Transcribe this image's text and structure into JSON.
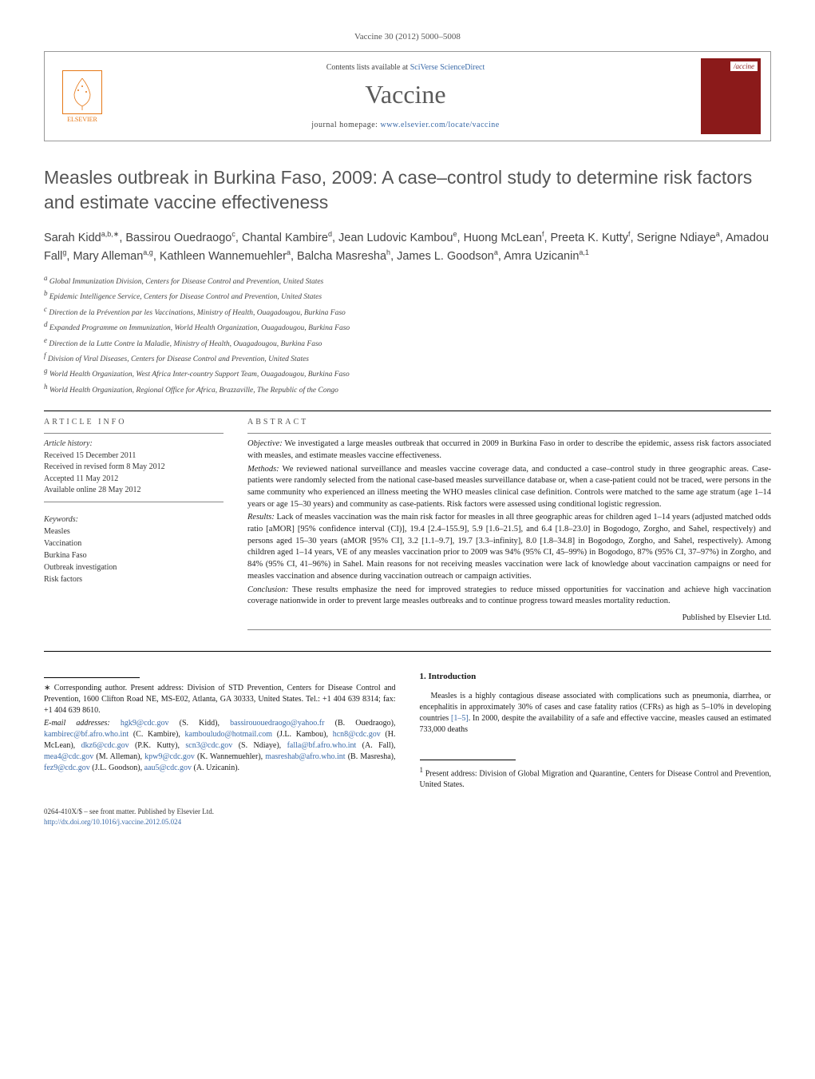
{
  "journal_ref": "Vaccine 30 (2012) 5000–5008",
  "header": {
    "contents_prefix": "Contents lists available at ",
    "sd_text": "SciVerse ScienceDirect",
    "journal_name": "Vaccine",
    "homepage_prefix": "journal homepage: ",
    "homepage_url": "www.elsevier.com/locate/vaccine",
    "elsevier_label": "ELSEVIER",
    "cover_label": "/accine"
  },
  "title": "Measles outbreak in Burkina Faso, 2009: A case–control study to determine risk factors and estimate vaccine effectiveness",
  "authors_html_parts": [
    {
      "name": "Sarah Kidd",
      "sup": "a,b,∗"
    },
    {
      "name": "Bassirou Ouedraogo",
      "sup": "c"
    },
    {
      "name": "Chantal Kambire",
      "sup": "d"
    },
    {
      "name": "Jean Ludovic Kambou",
      "sup": "e"
    },
    {
      "name": "Huong McLean",
      "sup": "f"
    },
    {
      "name": "Preeta K. Kutty",
      "sup": "f"
    },
    {
      "name": "Serigne Ndiaye",
      "sup": "a"
    },
    {
      "name": "Amadou Fall",
      "sup": "g"
    },
    {
      "name": "Mary Alleman",
      "sup": "a,g"
    },
    {
      "name": "Kathleen Wannemuehler",
      "sup": "a"
    },
    {
      "name": "Balcha Masresha",
      "sup": "h"
    },
    {
      "name": "James L. Goodson",
      "sup": "a"
    },
    {
      "name": "Amra Uzicanin",
      "sup": "a,1"
    }
  ],
  "affiliations": [
    {
      "sup": "a",
      "text": "Global Immunization Division, Centers for Disease Control and Prevention, United States"
    },
    {
      "sup": "b",
      "text": "Epidemic Intelligence Service, Centers for Disease Control and Prevention, United States"
    },
    {
      "sup": "c",
      "text": "Direction de la Prévention par les Vaccinations, Ministry of Health, Ouagadougou, Burkina Faso"
    },
    {
      "sup": "d",
      "text": "Expanded Programme on Immunization, World Health Organization, Ouagadougou, Burkina Faso"
    },
    {
      "sup": "e",
      "text": "Direction de la Lutte Contre la Maladie, Ministry of Health, Ouagadougou, Burkina Faso"
    },
    {
      "sup": "f",
      "text": "Division of Viral Diseases, Centers for Disease Control and Prevention, United States"
    },
    {
      "sup": "g",
      "text": "World Health Organization, West Africa Inter-country Support Team, Ouagadougou, Burkina Faso"
    },
    {
      "sup": "h",
      "text": "World Health Organization, Regional Office for Africa, Brazzaville, The Republic of the Congo"
    }
  ],
  "article_info": {
    "head": "ARTICLE INFO",
    "history_label": "Article history:",
    "received": "Received 15 December 2011",
    "revised": "Received in revised form 8 May 2012",
    "accepted": "Accepted 11 May 2012",
    "online": "Available online 28 May 2012",
    "keywords_label": "Keywords:",
    "keywords": [
      "Measles",
      "Vaccination",
      "Burkina Faso",
      "Outbreak investigation",
      "Risk factors"
    ]
  },
  "abstract": {
    "head": "ABSTRACT",
    "objective_label": "Objective:",
    "objective": "We investigated a large measles outbreak that occurred in 2009 in Burkina Faso in order to describe the epidemic, assess risk factors associated with measles, and estimate measles vaccine effectiveness.",
    "methods_label": "Methods:",
    "methods": "We reviewed national surveillance and measles vaccine coverage data, and conducted a case–control study in three geographic areas. Case-patients were randomly selected from the national case-based measles surveillance database or, when a case-patient could not be traced, were persons in the same community who experienced an illness meeting the WHO measles clinical case definition. Controls were matched to the same age stratum (age 1–14 years or age 15–30 years) and community as case-patients. Risk factors were assessed using conditional logistic regression.",
    "results_label": "Results:",
    "results": "Lack of measles vaccination was the main risk factor for measles in all three geographic areas for children aged 1–14 years (adjusted matched odds ratio [aMOR] [95% confidence interval (CI)], 19.4 [2.4–155.9], 5.9 [1.6–21.5], and 6.4 [1.8–23.0] in Bogodogo, Zorgho, and Sahel, respectively) and persons aged 15–30 years (aMOR [95% CI], 3.2 [1.1–9.7], 19.7 [3.3–infinity], 8.0 [1.8–34.8] in Bogodogo, Zorgho, and Sahel, respectively). Among children aged 1–14 years, VE of any measles vaccination prior to 2009 was 94% (95% CI, 45–99%) in Bogodogo, 87% (95% CI, 37–97%) in Zorgho, and 84% (95% CI, 41–96%) in Sahel. Main reasons for not receiving measles vaccination were lack of knowledge about vaccination campaigns or need for measles vaccination and absence during vaccination outreach or campaign activities.",
    "conclusion_label": "Conclusion:",
    "conclusion": "These results emphasize the need for improved strategies to reduce missed opportunities for vaccination and achieve high vaccination coverage nationwide in order to prevent large measles outbreaks and to continue progress toward measles mortality reduction.",
    "publisher": "Published by Elsevier Ltd."
  },
  "intro": {
    "head": "1. Introduction",
    "para1_pre": "Measles is a highly contagious disease associated with complications such as pneumonia, diarrhea, or encephalitis in approximately 30% of cases and case fatality ratios (CFRs) as high as 5–10% in developing countries ",
    "para1_ref": "[1–5]",
    "para1_post": ". In 2000, despite the availability of a safe and effective vaccine, measles caused an estimated 733,000 deaths"
  },
  "correspondence": {
    "star": "∗",
    "text": "Corresponding author. Present address: Division of STD Prevention, Centers for Disease Control and Prevention, 1600 Clifton Road NE, MS-E02, Atlanta, GA 30333, United States. Tel.: +1 404 639 8314; fax: +1 404 639 8610.",
    "email_label": "E-mail addresses:",
    "emails": [
      {
        "addr": "hgk9@cdc.gov",
        "who": "(S. Kidd)"
      },
      {
        "addr": "bassirououedraogo@yahoo.fr",
        "who": "(B. Ouedraogo)"
      },
      {
        "addr": "kambirec@bf.afro.who.int",
        "who": "(C. Kambire)"
      },
      {
        "addr": "kambouludo@hotmail.com",
        "who": "(J.L. Kambou)"
      },
      {
        "addr": "hcn8@cdc.gov",
        "who": "(H. McLean)"
      },
      {
        "addr": "dkz6@cdc.gov",
        "who": "(P.K. Kutty)"
      },
      {
        "addr": "scn3@cdc.gov",
        "who": "(S. Ndiaye)"
      },
      {
        "addr": "falla@bf.afro.who.int",
        "who": "(A. Fall)"
      },
      {
        "addr": "mea4@cdc.gov",
        "who": "(M. Alleman)"
      },
      {
        "addr": "kpw9@cdc.gov",
        "who": "(K. Wannemuehler)"
      },
      {
        "addr": "masreshab@afro.who.int",
        "who": "(B. Masresha)"
      },
      {
        "addr": "fez9@cdc.gov",
        "who": "(J.L. Goodson)"
      },
      {
        "addr": "aau5@cdc.gov",
        "who": "(A. Uzicanin)"
      }
    ],
    "note1_sup": "1",
    "note1": "Present address: Division of Global Migration and Quarantine, Centers for Disease Control and Prevention, United States."
  },
  "footer": {
    "copyright": "0264-410X/$ – see front matter. Published by Elsevier Ltd.",
    "doi": "http://dx.doi.org/10.1016/j.vaccine.2012.05.024"
  },
  "colors": {
    "link": "#3a6aa8",
    "elsevier": "#e67817",
    "cover": "#8b1a1a",
    "text": "#1a1a1a",
    "muted": "#555"
  }
}
